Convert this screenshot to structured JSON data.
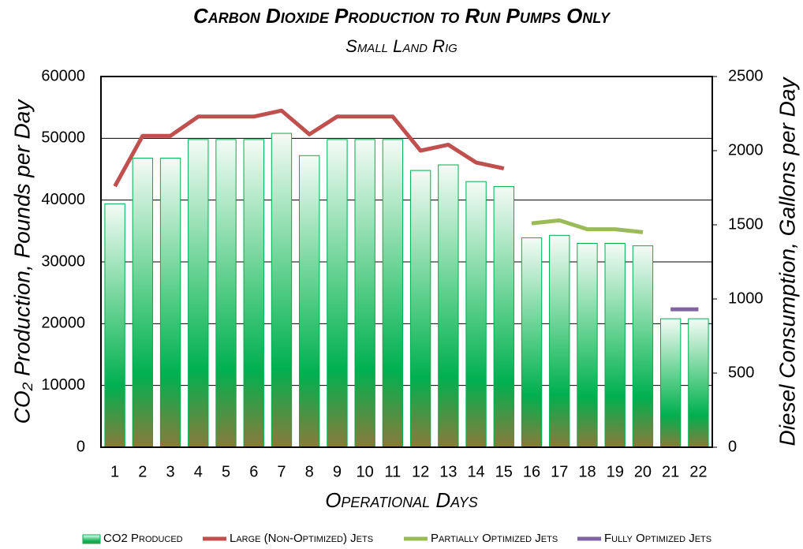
{
  "chart_data": {
    "type": "bar",
    "title": "Carbon Dioxide Production to Run Pumps Only",
    "subtitle": "Small Land Rig",
    "x_label": "Operational Days",
    "y_label": "CO₂ Production,  Pounds per Day",
    "y2_label": "Diesel Consumption,  Gallons per Day",
    "categories": [
      "1",
      "2",
      "3",
      "4",
      "5",
      "6",
      "7",
      "8",
      "9",
      "10",
      "11",
      "12",
      "13",
      "14",
      "15",
      "16",
      "17",
      "18",
      "19",
      "20",
      "21",
      "22"
    ],
    "series": [
      {
        "name": "CO2 Produced",
        "type": "bar",
        "axis": "y",
        "color": "#00b050",
        "values": [
          39400,
          46800,
          46800,
          49800,
          49800,
          49800,
          50800,
          47200,
          49800,
          49800,
          49800,
          44800,
          45700,
          43000,
          42200,
          33900,
          34300,
          33000,
          33000,
          32600,
          20800,
          20800
        ]
      },
      {
        "name": "Large (Non-Optimized) Jets",
        "type": "line",
        "axis": "y2",
        "color": "#c0504d",
        "values": [
          1760,
          2100,
          2100,
          2230,
          2230,
          2230,
          2270,
          2110,
          2230,
          2230,
          2230,
          2000,
          2040,
          1920,
          1880,
          null,
          null,
          null,
          null,
          null,
          null,
          null
        ]
      },
      {
        "name": "Partially Optimized Jets",
        "type": "line",
        "axis": "y2",
        "color": "#9bbb59",
        "values": [
          null,
          null,
          null,
          null,
          null,
          null,
          null,
          null,
          null,
          null,
          null,
          null,
          null,
          null,
          null,
          1510,
          1530,
          1470,
          1470,
          1450,
          null,
          null
        ]
      },
      {
        "name": "Fully Optimized Jets",
        "type": "line",
        "axis": "y2",
        "color": "#8064a2",
        "values": [
          null,
          null,
          null,
          null,
          null,
          null,
          null,
          null,
          null,
          null,
          null,
          null,
          null,
          null,
          null,
          null,
          null,
          null,
          null,
          null,
          930,
          930
        ]
      }
    ],
    "ylim": [
      0,
      60000
    ],
    "yticks": [
      0,
      10000,
      20000,
      30000,
      40000,
      50000,
      60000
    ],
    "y2lim": [
      0,
      2500
    ],
    "y2ticks": [
      0,
      500,
      1000,
      1500,
      2000,
      2500
    ],
    "grid": true,
    "legend": "bottom"
  }
}
